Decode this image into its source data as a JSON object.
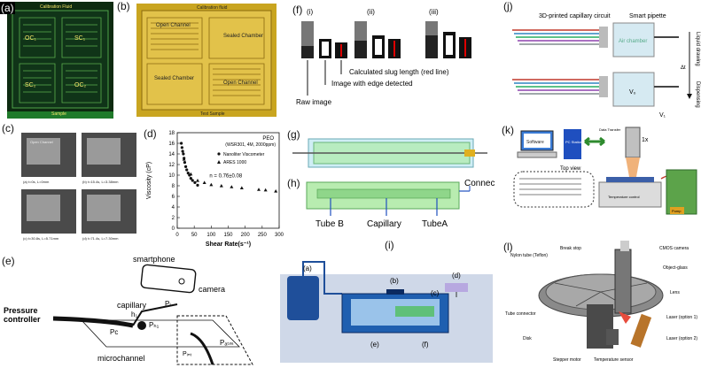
{
  "panels": {
    "a": {
      "label": "(a)",
      "calib_fluid": "Calibration Fluid",
      "sample": "Sample",
      "oc1": "OC₁",
      "sc1": "SC₁",
      "sc2": "SC₂",
      "oc2": "OC₂"
    },
    "b": {
      "label": "(b)",
      "calib_fluid": "Calibration fluid",
      "open_channel": "Open Channel",
      "sealed_chamber": "Sealed Chamber",
      "test_sample": "Test Sample"
    },
    "c": {
      "label": "(c)",
      "open_channel": "Open Channel",
      "captions": [
        "(a) t=0s, L=0mm",
        "(b) t=15.4s, L=3.38mm",
        "(c) t=30.8s, L=5.71mm",
        "(d) t=71.4s, L=7.30mm"
      ]
    },
    "d": {
      "label": "(d)"
    },
    "e": {
      "label": "(e)",
      "smartphone": "smartphone",
      "camera": "camera",
      "capillary": "capillary",
      "pressure_controller": "Pressure\ncontroller",
      "microchannel": "microchannel",
      "h1": "h₁",
      "pl": "Pₗ",
      "pc": "Pᴄ",
      "ph1": "Pₕ₁",
      "pint": "Pᵢₙₜ",
      "patm": "Pₐₜₘ"
    },
    "f": {
      "label": "(f)",
      "subs": [
        "(i)",
        "(ii)",
        "(iii)"
      ],
      "calc_slug": "Calculated slug length (red line)",
      "edge_detected": "Image with edge detected",
      "raw_image": "Raw image"
    },
    "g": {
      "label": "(g)"
    },
    "h": {
      "label": "(h)",
      "connector": "Connector",
      "tube_b": "Tube B",
      "capillary": "Capillary",
      "tube_a": "TubeA"
    },
    "i": {
      "label": "(i)",
      "a": "(a)",
      "b": "(b)",
      "c": "(c)",
      "d": "(d)",
      "e": "(e)",
      "f": "(f)"
    },
    "j": {
      "label": "(j)",
      "circuit": "3D-printed capillary circuit",
      "pipette": "Smart pipette",
      "air_chamber": "Air chamber",
      "v0": "V₀",
      "v1": "V₁",
      "drawing": "Liquid drawing",
      "dispensing": "Dispensing",
      "dt": "Δt"
    },
    "k": {
      "label": "(k)",
      "software": "Software",
      "pc_station": "PC Station",
      "data_transfer": "Data Transfer",
      "mag": "1x",
      "top_view": "Top view",
      "temp_control": "Temperature control",
      "pump": "Pump"
    },
    "l": {
      "label": "(l)",
      "nylon": "Nylon tube (Teflon)",
      "break_stop": "Break stop",
      "cmos": "CMOS camera",
      "object_glass": "Object-glass",
      "lens": "Lens",
      "tube_connector": "Tube connector",
      "disk": "Disk",
      "stepper": "Stepper motor",
      "temp_sensor": "Temperature sensor",
      "laser1": "Laser (option 1)",
      "laser2": "Laser (option 2)"
    }
  },
  "chart_data": {
    "type": "scatter",
    "legend_title": "PEO",
    "legend_subtitle": "(WSR301, 4M, 2000ppm)",
    "legend_position": "top-right",
    "xlabel": "Shear Rate(s⁻¹)",
    "ylabel": "Viscosity (cP)",
    "annotation": "n = 0.76±0.08",
    "xlim": [
      0,
      300
    ],
    "ylim": [
      0,
      18
    ],
    "xticks": [
      0,
      50,
      100,
      150,
      200,
      250,
      300
    ],
    "yticks": [
      0,
      2,
      4,
      6,
      8,
      10,
      12,
      14,
      16,
      18
    ],
    "series": [
      {
        "name": "Nanoliter Viscometer",
        "marker": "circle",
        "x": [
          12,
          14,
          16,
          18,
          20,
          22,
          25,
          28,
          32,
          36,
          40,
          45,
          52,
          60
        ],
        "y": [
          16,
          15.2,
          14.5,
          14.0,
          13.2,
          12.4,
          11.6,
          11.0,
          10.4,
          10.0,
          9.4,
          9.0,
          8.6,
          8.1
        ]
      },
      {
        "name": "ARES 1000",
        "marker": "triangle",
        "x": [
          20,
          40,
          60,
          80,
          100,
          130,
          160,
          190,
          240,
          260,
          290
        ],
        "y": [
          13.0,
          10.2,
          9.0,
          8.6,
          8.2,
          8.0,
          7.8,
          7.6,
          7.3,
          7.2,
          7.0
        ]
      }
    ]
  }
}
